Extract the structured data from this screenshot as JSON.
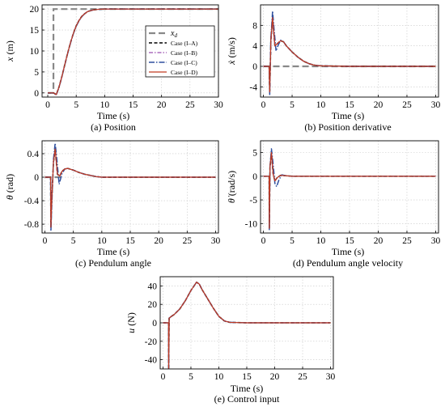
{
  "figure": {
    "captions": [
      "(a) Position",
      "(b) Position derivative",
      "(c) Pendulum angle",
      "(d) Pendulum angle velocity",
      "(e) Control input"
    ]
  },
  "legend": {
    "entries": [
      {
        "label": "x_d",
        "color": "#888888",
        "style": "dash-long"
      },
      {
        "label": "Case (I–A)",
        "color": "#000000",
        "style": "dash"
      },
      {
        "label": "Case (I–B)",
        "color": "#9a4fb0",
        "style": "dashdot"
      },
      {
        "label": "Case (I–C)",
        "color": "#2e4f9e",
        "style": "dashdot-long"
      },
      {
        "label": "Case (I–D)",
        "color": "#c23b22",
        "style": "solid"
      }
    ]
  },
  "chart_data": [
    {
      "type": "line",
      "caption": "(a) Position",
      "xlabel": "Time (s)",
      "ylabel_symbol": "x",
      "ylabel_unit": " (m)",
      "xlim": [
        -1,
        30
      ],
      "ylim": [
        -1,
        21
      ],
      "xticks": [
        0,
        5,
        10,
        15,
        20,
        25,
        30
      ],
      "yticks": [
        0,
        5,
        10,
        15,
        20
      ],
      "reference": {
        "name": "x_d",
        "x": [
          0,
          1,
          1,
          30
        ],
        "y": [
          0,
          0,
          20,
          20
        ]
      },
      "series": [
        {
          "name": "Case (I–A)",
          "x": [
            0,
            1,
            1.5,
            2,
            2.5,
            3,
            3.5,
            4,
            4.5,
            5,
            5.5,
            6,
            6.5,
            7,
            8,
            9,
            10,
            15,
            20,
            25,
            30
          ],
          "y": [
            0,
            0,
            -0.4,
            1.5,
            4.0,
            6.8,
            9.5,
            12.0,
            14.2,
            16.0,
            17.3,
            18.3,
            18.9,
            19.4,
            19.8,
            19.95,
            20.0,
            20.0,
            20.0,
            20.0,
            20.0
          ]
        },
        {
          "name": "Case (I–B)",
          "x": [
            0,
            1,
            1.5,
            2,
            2.5,
            3,
            3.5,
            4,
            4.5,
            5,
            5.5,
            6,
            6.5,
            7,
            8,
            9,
            10,
            15,
            20,
            25,
            30
          ],
          "y": [
            0,
            0,
            -0.4,
            1.5,
            4.0,
            6.8,
            9.5,
            12.0,
            14.2,
            16.0,
            17.3,
            18.3,
            18.9,
            19.4,
            19.8,
            19.95,
            20.0,
            20.0,
            20.0,
            20.0,
            20.0
          ]
        },
        {
          "name": "Case (I–C)",
          "x": [
            0,
            1,
            1.5,
            2,
            2.5,
            3,
            3.5,
            4,
            4.5,
            5,
            5.5,
            6,
            6.5,
            7,
            8,
            9,
            10,
            15,
            20,
            25,
            30
          ],
          "y": [
            0,
            0,
            -0.5,
            1.4,
            3.9,
            6.7,
            9.4,
            11.9,
            14.1,
            15.9,
            17.2,
            18.2,
            18.9,
            19.4,
            19.8,
            19.95,
            20.0,
            20.0,
            20.0,
            20.0,
            20.0
          ]
        },
        {
          "name": "Case (I–D)",
          "x": [
            0,
            1,
            1.5,
            2,
            2.5,
            3,
            3.5,
            4,
            4.5,
            5,
            5.5,
            6,
            6.5,
            7,
            8,
            9,
            10,
            15,
            20,
            25,
            30
          ],
          "y": [
            0,
            0,
            -0.4,
            1.5,
            4.0,
            6.8,
            9.5,
            12.0,
            14.2,
            16.0,
            17.3,
            18.3,
            18.9,
            19.4,
            19.8,
            19.95,
            20.0,
            20.0,
            20.0,
            20.0,
            20.0
          ]
        }
      ]
    },
    {
      "type": "line",
      "caption": "(b) Position derivative",
      "xlabel": "Time (s)",
      "ylabel_symbol": "ẋ",
      "ylabel_unit": " (m/s)",
      "xlim": [
        -0.5,
        30.5
      ],
      "ylim": [
        -6,
        12
      ],
      "xticks": [
        0,
        5,
        10,
        15,
        20,
        25,
        30
      ],
      "yticks": [
        -4,
        0,
        4,
        8
      ],
      "reference": {
        "name": "x_d",
        "x": [
          0,
          1,
          1.2,
          30
        ],
        "y": [
          0,
          0,
          0,
          0
        ]
      },
      "series": [
        {
          "name": "Case (I–A)",
          "x": [
            0,
            1,
            1.1,
            1.3,
            1.6,
            2,
            2.5,
            3,
            3.5,
            4,
            5,
            6,
            7,
            8,
            9,
            10,
            15,
            20,
            25,
            30
          ],
          "y": [
            0,
            0,
            -5.0,
            5.0,
            9.5,
            4.0,
            4.5,
            5.0,
            4.8,
            4.0,
            2.8,
            1.8,
            1.0,
            0.5,
            0.2,
            0.1,
            0,
            0,
            0,
            0
          ]
        },
        {
          "name": "Case (I–B)",
          "x": [
            0,
            1,
            1.1,
            1.3,
            1.6,
            2,
            2.5,
            3,
            3.5,
            4,
            5,
            6,
            7,
            8,
            9,
            10,
            15,
            20,
            25,
            30
          ],
          "y": [
            0,
            0,
            -5.0,
            5.0,
            9.5,
            4.0,
            4.5,
            5.0,
            4.8,
            4.0,
            2.8,
            1.8,
            1.0,
            0.5,
            0.2,
            0.1,
            0,
            0,
            0,
            0
          ]
        },
        {
          "name": "Case (I–C)",
          "x": [
            0,
            1,
            1.1,
            1.3,
            1.6,
            1.8,
            2.2,
            2.6,
            3,
            3.5,
            4,
            5,
            6,
            7,
            8,
            9,
            10,
            15,
            20,
            25,
            30
          ],
          "y": [
            0,
            0,
            -5.5,
            5.5,
            10.8,
            8.0,
            3.0,
            4.2,
            5.1,
            4.8,
            4.0,
            2.8,
            1.8,
            1.0,
            0.5,
            0.2,
            0.1,
            0,
            0,
            0,
            0
          ]
        },
        {
          "name": "Case (I–D)",
          "x": [
            0,
            1,
            1.1,
            1.3,
            1.6,
            2,
            2.5,
            3,
            3.5,
            4,
            5,
            6,
            7,
            8,
            9,
            10,
            15,
            20,
            25,
            30
          ],
          "y": [
            0,
            0,
            -5.0,
            5.0,
            9.5,
            4.0,
            4.5,
            5.0,
            4.8,
            4.0,
            2.8,
            1.8,
            1.0,
            0.5,
            0.2,
            0.1,
            0,
            0,
            0,
            0
          ]
        }
      ]
    },
    {
      "type": "line",
      "caption": "(c) Pendulum angle",
      "xlabel": "Time (s)",
      "ylabel_symbol": "θ",
      "ylabel_unit": " (rad)",
      "xlim": [
        -0.5,
        30.5
      ],
      "ylim": [
        -0.95,
        0.62
      ],
      "xticks": [
        0,
        5,
        10,
        15,
        20,
        25,
        30
      ],
      "yticks": [
        -0.8,
        -0.4,
        0,
        0.4
      ],
      "reference": {
        "name": "x_d",
        "x": [
          0,
          1,
          1.2,
          3.2
        ],
        "y": [
          0,
          0,
          0,
          0
        ]
      },
      "series": [
        {
          "name": "Case (I–A)",
          "x": [
            0,
            1,
            1.05,
            1.2,
            1.5,
            1.8,
            2.2,
            2.6,
            3,
            3.5,
            4,
            5,
            6,
            7,
            8,
            9,
            10,
            15,
            20,
            25,
            30
          ],
          "y": [
            0,
            0,
            -0.85,
            -0.4,
            0.25,
            0.48,
            0.05,
            0.02,
            0.1,
            0.14,
            0.15,
            0.12,
            0.08,
            0.05,
            0.03,
            0.01,
            0,
            0,
            0,
            0,
            0
          ]
        },
        {
          "name": "Case (I–B)",
          "x": [
            0,
            1,
            1.05,
            1.2,
            1.5,
            1.8,
            2.2,
            2.6,
            3,
            3.5,
            4,
            5,
            6,
            7,
            8,
            9,
            10,
            15,
            20,
            25,
            30
          ],
          "y": [
            0,
            0,
            -0.85,
            -0.4,
            0.25,
            0.48,
            0.05,
            0.02,
            0.1,
            0.14,
            0.15,
            0.12,
            0.08,
            0.05,
            0.03,
            0.01,
            0,
            0,
            0,
            0,
            0
          ]
        },
        {
          "name": "Case (I–C)",
          "x": [
            0,
            1,
            1.05,
            1.2,
            1.5,
            1.8,
            2.1,
            2.5,
            3,
            3.5,
            4,
            5,
            6,
            7,
            8,
            9,
            10,
            15,
            20,
            25,
            30
          ],
          "y": [
            0,
            0,
            -0.92,
            -0.5,
            0.3,
            0.58,
            0.3,
            -0.12,
            0.06,
            0.14,
            0.15,
            0.12,
            0.08,
            0.05,
            0.03,
            0.01,
            0,
            0,
            0,
            0,
            0
          ]
        },
        {
          "name": "Case (I–D)",
          "x": [
            0,
            1,
            1.05,
            1.2,
            1.5,
            1.8,
            2.2,
            2.6,
            3,
            3.5,
            4,
            5,
            6,
            7,
            8,
            9,
            10,
            15,
            20,
            25,
            30
          ],
          "y": [
            0,
            0,
            -0.85,
            -0.4,
            0.25,
            0.48,
            0.05,
            0.02,
            0.1,
            0.14,
            0.15,
            0.12,
            0.08,
            0.05,
            0.03,
            0.01,
            0,
            0,
            0,
            0,
            0
          ]
        }
      ]
    },
    {
      "type": "line",
      "caption": "(d) Pendulum angle velocity",
      "xlabel": "Time (s)",
      "ylabel_symbol": "θ̇",
      "ylabel_unit": " (rad/s)",
      "xlim": [
        -0.5,
        30.5
      ],
      "ylim": [
        -12,
        7.5
      ],
      "xticks": [
        0,
        5,
        10,
        15,
        20,
        25,
        30
      ],
      "yticks": [
        -10,
        -5,
        0,
        5
      ],
      "series": [
        {
          "name": "Case (I–A)",
          "x": [
            0,
            1,
            1.03,
            1.15,
            1.4,
            1.7,
            2,
            2.4,
            3,
            4,
            5,
            10,
            15,
            20,
            25,
            30
          ],
          "y": [
            0,
            0,
            -11,
            2,
            5,
            0.5,
            -1.0,
            -0.3,
            0.2,
            0.1,
            0,
            0,
            0,
            0,
            0,
            0
          ]
        },
        {
          "name": "Case (I–B)",
          "x": [
            0,
            1,
            1.03,
            1.15,
            1.4,
            1.7,
            2,
            2.4,
            3,
            4,
            5,
            10,
            15,
            20,
            25,
            30
          ],
          "y": [
            0,
            0,
            -11,
            2,
            5,
            0.5,
            -1.0,
            -0.3,
            0.2,
            0.1,
            0,
            0,
            0,
            0,
            0,
            0
          ]
        },
        {
          "name": "Case (I–C)",
          "x": [
            0,
            1,
            1.03,
            1.15,
            1.4,
            1.7,
            2,
            2.3,
            2.7,
            3.2,
            4,
            5,
            10,
            15,
            20,
            25,
            30
          ],
          "y": [
            0,
            0,
            -11.5,
            2,
            5.8,
            2.5,
            -1.5,
            -2.2,
            -0.8,
            0.3,
            0.1,
            0,
            0,
            0,
            0,
            0,
            0
          ]
        },
        {
          "name": "Case (I–D)",
          "x": [
            0,
            1,
            1.03,
            1.15,
            1.4,
            1.7,
            2,
            2.4,
            3,
            4,
            5,
            10,
            15,
            20,
            25,
            30
          ],
          "y": [
            0,
            0,
            -11,
            2,
            5,
            0.5,
            -1.0,
            -0.3,
            0.2,
            0.1,
            0,
            0,
            0,
            0,
            0,
            0
          ]
        }
      ]
    },
    {
      "type": "line",
      "caption": "(e) Control input",
      "xlabel": "Time (s)",
      "ylabel_symbol": "u",
      "ylabel_unit": " (N)",
      "xlim": [
        -0.5,
        30.5
      ],
      "ylim": [
        -50,
        50
      ],
      "xticks": [
        0,
        5,
        10,
        15,
        20,
        25,
        30
      ],
      "yticks": [
        -40,
        -20,
        0,
        20,
        40
      ],
      "series": [
        {
          "name": "Case (I–A)",
          "x": [
            0,
            1,
            1.02,
            1.1,
            1.5,
            2,
            3,
            4,
            5,
            6,
            6.5,
            7,
            8,
            9,
            10,
            11,
            12,
            15,
            20,
            25,
            30
          ],
          "y": [
            0,
            0,
            -50,
            5,
            7,
            9,
            15,
            24,
            35,
            44,
            42,
            36,
            26,
            16,
            7,
            2,
            0.5,
            0,
            0,
            0,
            0
          ]
        },
        {
          "name": "Case (I–B)",
          "x": [
            0,
            1,
            1.02,
            1.1,
            1.5,
            2,
            3,
            4,
            5,
            6,
            6.5,
            7,
            8,
            9,
            10,
            11,
            12,
            15,
            20,
            25,
            30
          ],
          "y": [
            0,
            0,
            -50,
            5,
            7,
            9,
            15,
            24,
            35,
            44,
            42,
            36,
            26,
            16,
            7,
            2,
            0.5,
            0,
            0,
            0,
            0
          ]
        },
        {
          "name": "Case (I–C)",
          "x": [
            0,
            1,
            1.02,
            1.1,
            1.5,
            2,
            3,
            4,
            5,
            6,
            6.5,
            7,
            8,
            9,
            10,
            11,
            12,
            15,
            20,
            25,
            30
          ],
          "y": [
            0,
            0,
            -50,
            5,
            7,
            9,
            15,
            24,
            35,
            44,
            42,
            36,
            26,
            16,
            7,
            2,
            0.5,
            0,
            0,
            0,
            0
          ]
        },
        {
          "name": "Case (I–D)",
          "x": [
            0,
            1,
            1.02,
            1.1,
            1.5,
            2,
            3,
            4,
            5,
            6,
            6.5,
            7,
            8,
            9,
            10,
            11,
            12,
            15,
            20,
            25,
            30
          ],
          "y": [
            0,
            0,
            -50,
            5,
            7,
            9,
            15,
            24,
            35,
            44,
            42,
            36,
            26,
            16,
            7,
            2,
            0.5,
            0,
            0,
            0,
            0
          ]
        }
      ]
    }
  ]
}
